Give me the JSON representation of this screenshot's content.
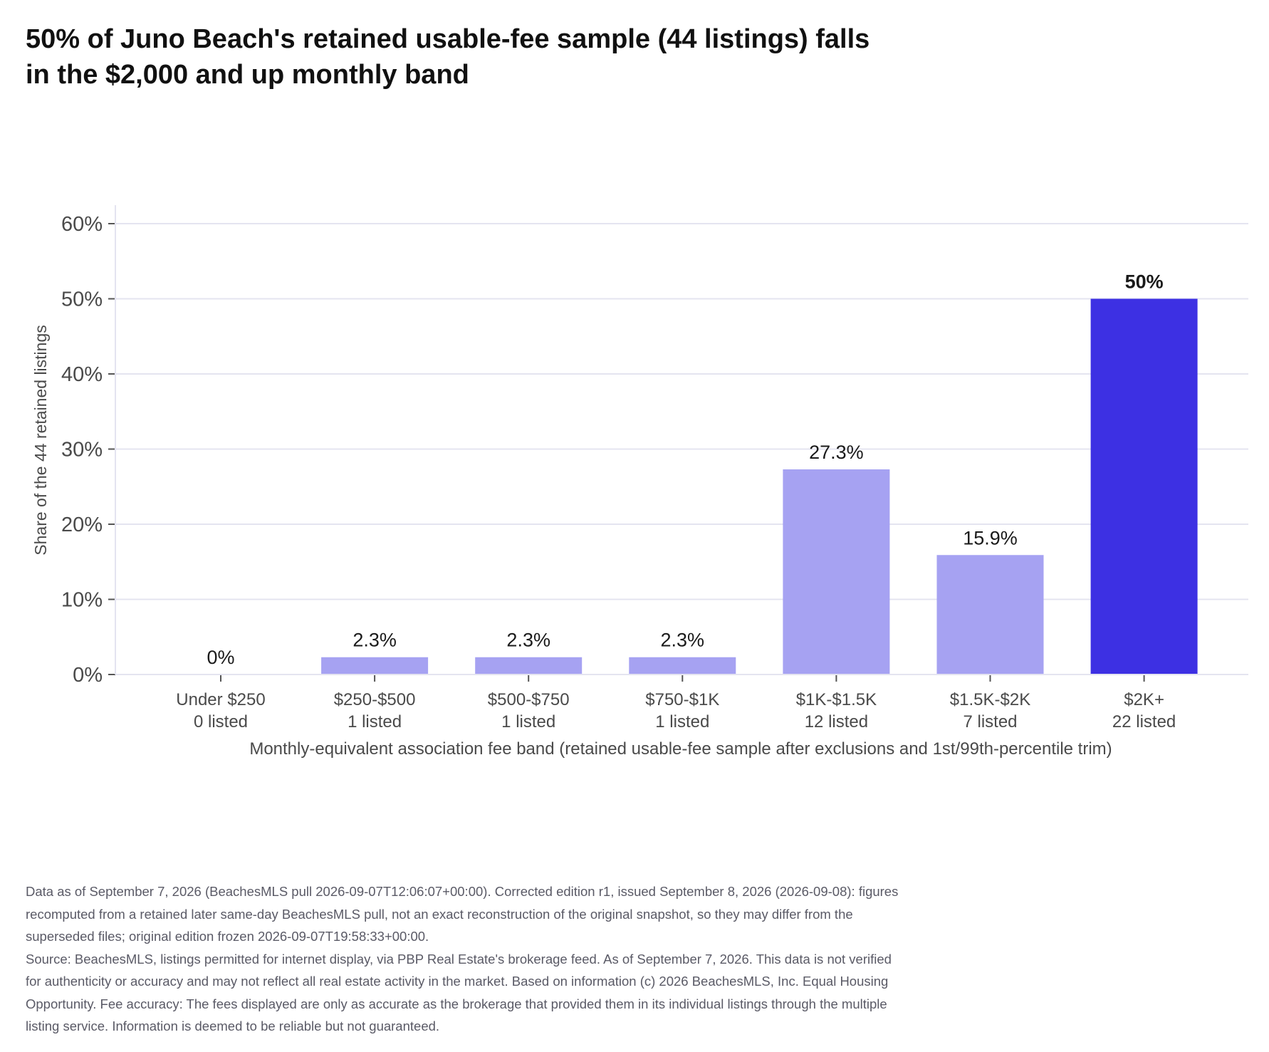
{
  "title_lines": [
    "50% of Juno Beach's retained usable-fee sample (44 listings) falls",
    "in the $2,000 and up monthly band"
  ],
  "footer_lines": [
    "Data as of September 7, 2026 (BeachesMLS pull 2026-09-07T12:06:07+00:00). Corrected edition r1, issued September 8, 2026 (2026-09-08): figures",
    "recomputed from a retained later same-day BeachesMLS pull, not an exact reconstruction of the original snapshot, so they may differ from the",
    "superseded files; original edition frozen 2026-09-07T19:58:33+00:00.",
    "Source: BeachesMLS, listings permitted for internet display, via PBP Real Estate's brokerage feed. As of September 7, 2026. This data is not verified",
    "for authenticity or accuracy and may not reflect all real estate activity in the market. Based on information (c) 2026 BeachesMLS, Inc. Equal Housing",
    "Opportunity. Fee accuracy: The fees displayed are only as accurate as the brokerage that provided them in its individual listings through the multiple",
    "listing service. Information is deemed to be reliable but not guaranteed."
  ],
  "colors": {
    "highlight": "#3d30e3",
    "bar": "#a6a2f2",
    "grid": "#e4e4f0",
    "axis": "#555555"
  },
  "chart_data": {
    "type": "bar",
    "categories": [
      "Under $250",
      "$250-$500",
      "$500-$750",
      "$750-$1K",
      "$1K-$1.5K",
      "$1.5K-$2K",
      "$2K+"
    ],
    "sublabels": [
      "0 listed",
      "1 listed",
      "1 listed",
      "1 listed",
      "12 listed",
      "7 listed",
      "22 listed"
    ],
    "values": [
      0,
      2.3,
      2.3,
      2.3,
      27.3,
      15.9,
      50
    ],
    "value_labels": [
      "0%",
      "2.3%",
      "2.3%",
      "2.3%",
      "27.3%",
      "15.9%",
      "50%"
    ],
    "highlight_index": 6,
    "xlabel": "Monthly-equivalent association fee band (retained usable-fee sample after exclusions and 1st/99th-percentile trim)",
    "ylabel": "Share of the 44 retained listings",
    "ylim": [
      0,
      62
    ],
    "yticks": [
      0,
      10,
      20,
      30,
      40,
      50,
      60
    ],
    "ytick_labels": [
      "0%",
      "10%",
      "20%",
      "30%",
      "40%",
      "50%",
      "60%"
    ],
    "grid": true,
    "legend": false
  }
}
